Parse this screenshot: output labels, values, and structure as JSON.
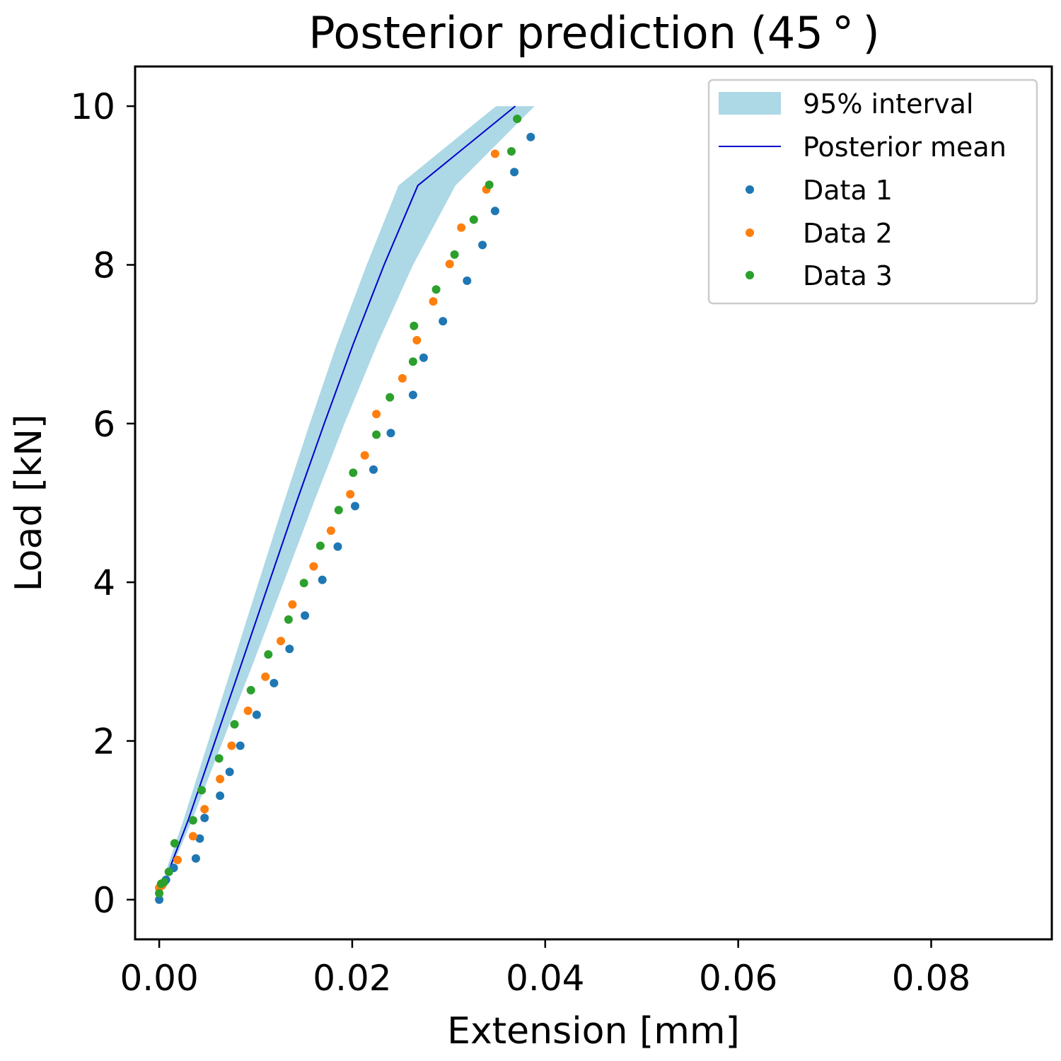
{
  "chart_data": {
    "type": "scatter",
    "title": "Posterior prediction (45$^\\circ$)",
    "title_display": "Posterior prediction (45 ° )",
    "xlabel": "Extension [mm]",
    "ylabel": "Load [kN]",
    "xlim": [
      -0.0025,
      0.0925
    ],
    "ylim": [
      -0.5,
      10.5
    ],
    "xticks": [
      0.0,
      0.02,
      0.04,
      0.06,
      0.08
    ],
    "xtick_labels": [
      "0.00",
      "0.02",
      "0.04",
      "0.06",
      "0.08"
    ],
    "yticks": [
      0,
      2,
      4,
      6,
      8,
      10
    ],
    "ytick_labels": [
      "0",
      "2",
      "4",
      "6",
      "8",
      "10"
    ],
    "grid": false,
    "legend_position": "top-right",
    "interval": {
      "name": "95% interval",
      "color": "#add8e6",
      "y": [
        0.4,
        1.0,
        2.0,
        3.0,
        4.0,
        5.0,
        6.0,
        7.0,
        8.0,
        9.0,
        10.0
      ],
      "lower_x": [
        0.0013,
        0.0034,
        0.0066,
        0.0098,
        0.0129,
        0.016,
        0.0192,
        0.0226,
        0.0263,
        0.0307,
        0.0389
      ],
      "upper_x": [
        0.0008,
        0.0025,
        0.0051,
        0.0077,
        0.0103,
        0.0129,
        0.0156,
        0.0184,
        0.0215,
        0.0248,
        0.0349
      ]
    },
    "mean": {
      "name": "Posterior mean",
      "color": "#0000cc",
      "y": [
        0.4,
        1.0,
        2.0,
        3.0,
        4.0,
        5.0,
        6.0,
        7.0,
        8.0,
        9.0,
        10.0
      ],
      "x": [
        0.0011,
        0.003,
        0.0058,
        0.0086,
        0.0114,
        0.0142,
        0.0171,
        0.0201,
        0.0233,
        0.0268,
        0.0369
      ]
    },
    "series": [
      {
        "name": "Data 1",
        "color": "#1f77b4",
        "x": [
          0.0,
          0.0007,
          0.0015,
          0.0038,
          0.0042,
          0.0047,
          0.0063,
          0.0073,
          0.0084,
          0.0101,
          0.0119,
          0.0135,
          0.0151,
          0.0169,
          0.0185,
          0.0203,
          0.0222,
          0.024,
          0.0263,
          0.0274,
          0.0294,
          0.0319,
          0.0335,
          0.0348,
          0.0368,
          0.0385
        ],
        "y": [
          0.0,
          0.25,
          0.4,
          0.52,
          0.77,
          1.03,
          1.31,
          1.61,
          1.94,
          2.33,
          2.73,
          3.16,
          3.58,
          4.03,
          4.45,
          4.96,
          5.42,
          5.88,
          6.36,
          6.83,
          7.29,
          7.8,
          8.25,
          8.68,
          9.17,
          9.61
        ]
      },
      {
        "name": "Data 2",
        "color": "#ff7f0e",
        "x": [
          0.0,
          0.0003,
          0.0019,
          0.0035,
          0.0047,
          0.0063,
          0.0075,
          0.0092,
          0.011,
          0.0126,
          0.0138,
          0.016,
          0.0178,
          0.0198,
          0.0213,
          0.0225,
          0.0252,
          0.0267,
          0.0284,
          0.0301,
          0.0313,
          0.0339,
          0.0348
        ],
        "y": [
          0.15,
          0.18,
          0.5,
          0.8,
          1.14,
          1.52,
          1.94,
          2.38,
          2.81,
          3.26,
          3.72,
          4.2,
          4.65,
          5.11,
          5.6,
          6.12,
          6.57,
          7.05,
          7.54,
          8.01,
          8.47,
          8.95,
          9.4
        ]
      },
      {
        "name": "Data 3",
        "color": "#2ca02c",
        "x": [
          0.0,
          0.0002,
          0.0005,
          0.001,
          0.0016,
          0.0035,
          0.0044,
          0.0062,
          0.0078,
          0.0095,
          0.0113,
          0.0134,
          0.015,
          0.0167,
          0.0186,
          0.0201,
          0.0225,
          0.0239,
          0.0263,
          0.0264,
          0.0287,
          0.0306,
          0.0326,
          0.0342,
          0.0365,
          0.0371
        ],
        "y": [
          0.08,
          0.2,
          0.22,
          0.35,
          0.71,
          1.0,
          1.38,
          1.78,
          2.21,
          2.64,
          3.09,
          3.53,
          3.99,
          4.46,
          4.91,
          5.38,
          5.86,
          6.33,
          6.78,
          7.23,
          7.69,
          8.13,
          8.57,
          9.01,
          9.43,
          9.84
        ]
      }
    ]
  }
}
